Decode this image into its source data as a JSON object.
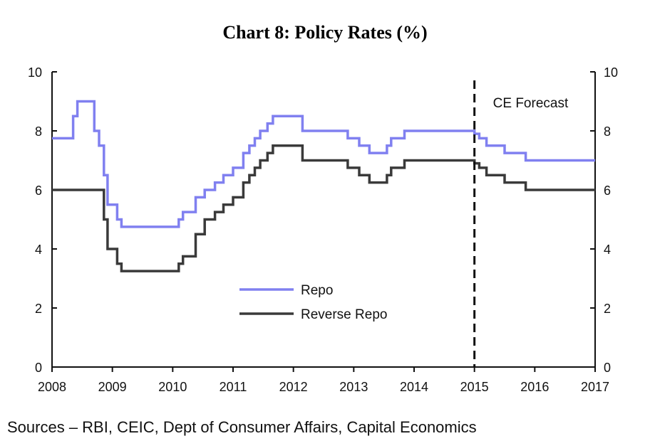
{
  "chart_data": {
    "type": "line",
    "title": "Chart 8: Policy Rates (%)",
    "source": "Sources – RBI, CEIC, Dept of Consumer Affairs, Capital Economics",
    "xlabel": "",
    "ylabel": "",
    "xlim": [
      2008,
      2017
    ],
    "ylim": [
      0,
      10
    ],
    "x_ticks": [
      "2008",
      "2009",
      "2010",
      "2011",
      "2012",
      "2013",
      "2014",
      "2015",
      "2016",
      "2017"
    ],
    "y_ticks": [
      "0",
      "2",
      "4",
      "6",
      "8",
      "10"
    ],
    "y2_ticks": [
      "0",
      "2",
      "4",
      "6",
      "8",
      "10"
    ],
    "grid": false,
    "legend_position": "center-left",
    "annotation": {
      "text": "CE Forecast",
      "x": 2015
    },
    "series": [
      {
        "name": "Repo",
        "color": "#8080f0",
        "points": [
          [
            2008.0,
            7.75
          ],
          [
            2008.35,
            7.75
          ],
          [
            2008.35,
            8.5
          ],
          [
            2008.42,
            8.5
          ],
          [
            2008.42,
            9.0
          ],
          [
            2008.7,
            9.0
          ],
          [
            2008.7,
            8.0
          ],
          [
            2008.78,
            8.0
          ],
          [
            2008.78,
            7.5
          ],
          [
            2008.86,
            7.5
          ],
          [
            2008.86,
            6.5
          ],
          [
            2008.92,
            6.5
          ],
          [
            2008.92,
            5.5
          ],
          [
            2009.08,
            5.5
          ],
          [
            2009.08,
            5.0
          ],
          [
            2009.15,
            5.0
          ],
          [
            2009.15,
            4.75
          ],
          [
            2010.1,
            4.75
          ],
          [
            2010.1,
            5.0
          ],
          [
            2010.17,
            5.0
          ],
          [
            2010.17,
            5.25
          ],
          [
            2010.38,
            5.25
          ],
          [
            2010.38,
            5.75
          ],
          [
            2010.53,
            5.75
          ],
          [
            2010.53,
            6.0
          ],
          [
            2010.7,
            6.0
          ],
          [
            2010.7,
            6.25
          ],
          [
            2010.84,
            6.25
          ],
          [
            2010.84,
            6.5
          ],
          [
            2011.0,
            6.5
          ],
          [
            2011.0,
            6.75
          ],
          [
            2011.17,
            6.75
          ],
          [
            2011.17,
            7.25
          ],
          [
            2011.27,
            7.25
          ],
          [
            2011.27,
            7.5
          ],
          [
            2011.36,
            7.5
          ],
          [
            2011.36,
            7.75
          ],
          [
            2011.45,
            7.75
          ],
          [
            2011.45,
            8.0
          ],
          [
            2011.57,
            8.0
          ],
          [
            2011.57,
            8.25
          ],
          [
            2011.66,
            8.25
          ],
          [
            2011.66,
            8.5
          ],
          [
            2012.15,
            8.5
          ],
          [
            2012.15,
            8.0
          ],
          [
            2012.9,
            8.0
          ],
          [
            2012.9,
            7.75
          ],
          [
            2013.09,
            7.75
          ],
          [
            2013.09,
            7.5
          ],
          [
            2013.26,
            7.5
          ],
          [
            2013.26,
            7.25
          ],
          [
            2013.55,
            7.25
          ],
          [
            2013.55,
            7.5
          ],
          [
            2013.62,
            7.5
          ],
          [
            2013.62,
            7.75
          ],
          [
            2013.84,
            7.75
          ],
          [
            2013.84,
            8.0
          ],
          [
            2015.0,
            8.0
          ],
          [
            2015.0,
            7.9
          ],
          [
            2015.08,
            7.9
          ],
          [
            2015.08,
            7.75
          ],
          [
            2015.2,
            7.75
          ],
          [
            2015.2,
            7.5
          ],
          [
            2015.5,
            7.5
          ],
          [
            2015.5,
            7.25
          ],
          [
            2015.85,
            7.25
          ],
          [
            2015.85,
            7.0
          ],
          [
            2017.0,
            7.0
          ]
        ]
      },
      {
        "name": "Reverse Repo",
        "color": "#3a3a3a",
        "points": [
          [
            2008.0,
            6.0
          ],
          [
            2008.86,
            6.0
          ],
          [
            2008.86,
            5.0
          ],
          [
            2008.92,
            5.0
          ],
          [
            2008.92,
            4.0
          ],
          [
            2009.08,
            4.0
          ],
          [
            2009.08,
            3.5
          ],
          [
            2009.15,
            3.5
          ],
          [
            2009.15,
            3.25
          ],
          [
            2010.1,
            3.25
          ],
          [
            2010.1,
            3.5
          ],
          [
            2010.17,
            3.5
          ],
          [
            2010.17,
            3.75
          ],
          [
            2010.38,
            3.75
          ],
          [
            2010.38,
            4.5
          ],
          [
            2010.53,
            4.5
          ],
          [
            2010.53,
            5.0
          ],
          [
            2010.7,
            5.0
          ],
          [
            2010.7,
            5.25
          ],
          [
            2010.84,
            5.25
          ],
          [
            2010.84,
            5.5
          ],
          [
            2011.0,
            5.5
          ],
          [
            2011.0,
            5.75
          ],
          [
            2011.17,
            5.75
          ],
          [
            2011.17,
            6.25
          ],
          [
            2011.27,
            6.25
          ],
          [
            2011.27,
            6.5
          ],
          [
            2011.36,
            6.5
          ],
          [
            2011.36,
            6.75
          ],
          [
            2011.45,
            6.75
          ],
          [
            2011.45,
            7.0
          ],
          [
            2011.57,
            7.0
          ],
          [
            2011.57,
            7.25
          ],
          [
            2011.66,
            7.25
          ],
          [
            2011.66,
            7.5
          ],
          [
            2012.15,
            7.5
          ],
          [
            2012.15,
            7.0
          ],
          [
            2012.9,
            7.0
          ],
          [
            2012.9,
            6.75
          ],
          [
            2013.09,
            6.75
          ],
          [
            2013.09,
            6.5
          ],
          [
            2013.26,
            6.5
          ],
          [
            2013.26,
            6.25
          ],
          [
            2013.55,
            6.25
          ],
          [
            2013.55,
            6.5
          ],
          [
            2013.62,
            6.5
          ],
          [
            2013.62,
            6.75
          ],
          [
            2013.84,
            6.75
          ],
          [
            2013.84,
            7.0
          ],
          [
            2015.0,
            7.0
          ],
          [
            2015.0,
            6.9
          ],
          [
            2015.08,
            6.9
          ],
          [
            2015.08,
            6.75
          ],
          [
            2015.2,
            6.75
          ],
          [
            2015.2,
            6.5
          ],
          [
            2015.5,
            6.5
          ],
          [
            2015.5,
            6.25
          ],
          [
            2015.85,
            6.25
          ],
          [
            2015.85,
            6.0
          ],
          [
            2017.0,
            6.0
          ]
        ]
      }
    ]
  }
}
